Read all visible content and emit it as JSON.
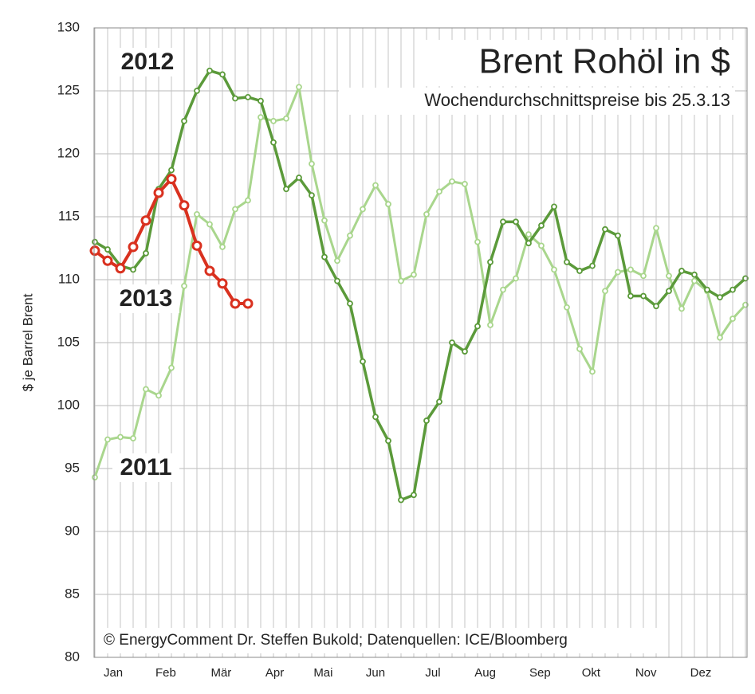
{
  "chart_data": {
    "type": "line",
    "title": "Brent Rohöl in $",
    "subtitle": "Wochendurchschnittspreise bis 25.3.13",
    "y_label": "$ je Barrel  Brent",
    "source": "© EnergyComment Dr. Steffen Bukold; Datenquellen: ICE/Bloomberg",
    "x": [
      1,
      2,
      3,
      4,
      5,
      6,
      7,
      8,
      9,
      10,
      11,
      12,
      13,
      14,
      15,
      16,
      17,
      18,
      19,
      20,
      21,
      22,
      23,
      24,
      25,
      26,
      27,
      28,
      29,
      30,
      31,
      32,
      33,
      34,
      35,
      36,
      37,
      38,
      39,
      40,
      41,
      42,
      43,
      44,
      45,
      46,
      47,
      48,
      49,
      50,
      51,
      52
    ],
    "xlim": [
      1,
      52
    ],
    "xticks": [
      {
        "value": 2.44,
        "label": "Jan"
      },
      {
        "value": 6.56,
        "label": "Feb"
      },
      {
        "value": 10.9,
        "label": "Mär"
      },
      {
        "value": 15.1,
        "label": "Apr"
      },
      {
        "value": 18.9,
        "label": "Mai"
      },
      {
        "value": 23,
        "label": "Jun"
      },
      {
        "value": 27.5,
        "label": "Jul"
      },
      {
        "value": 31.6,
        "label": "Aug"
      },
      {
        "value": 35.9,
        "label": "Sep"
      },
      {
        "value": 39.9,
        "label": "Okt"
      },
      {
        "value": 44.2,
        "label": "Nov"
      },
      {
        "value": 48.5,
        "label": "Dez"
      }
    ],
    "ylim": [
      80,
      130
    ],
    "yticks": [
      80,
      85,
      90,
      95,
      100,
      105,
      110,
      115,
      120,
      125,
      130
    ],
    "grid": true,
    "series": [
      {
        "name": "2011",
        "color": "#a9d68d",
        "values": [
          94.3,
          97.3,
          97.5,
          97.4,
          101.3,
          100.8,
          103.0,
          109.5,
          115.2,
          114.4,
          112.6,
          115.6,
          116.3,
          122.9,
          122.6,
          122.8,
          125.3,
          119.2,
          114.7,
          111.5,
          113.5,
          115.6,
          117.5,
          116.0,
          109.9,
          110.4,
          115.2,
          117.0,
          117.8,
          117.6,
          113.0,
          106.4,
          109.2,
          110.1,
          113.6,
          112.7,
          110.8,
          107.8,
          104.5,
          102.7,
          109.1,
          110.6,
          110.8,
          110.3,
          114.1,
          110.3,
          107.7,
          109.9,
          109.1,
          105.4,
          106.9,
          108.0
        ]
      },
      {
        "name": "2012",
        "color": "#5b9a3a",
        "values": [
          113.0,
          112.4,
          111.1,
          110.8,
          112.1,
          117.2,
          118.7,
          122.6,
          125.0,
          126.6,
          126.3,
          124.4,
          124.5,
          124.2,
          120.9,
          117.2,
          118.1,
          116.7,
          111.8,
          109.9,
          108.1,
          103.5,
          99.1,
          97.2,
          92.5,
          92.9,
          98.8,
          100.3,
          105.0,
          104.3,
          106.3,
          111.4,
          114.6,
          114.6,
          112.9,
          114.3,
          115.8,
          111.4,
          110.7,
          111.1,
          114.0,
          113.5,
          108.7,
          108.7,
          107.9,
          109.1,
          110.7,
          110.4,
          109.2,
          108.6,
          109.2,
          110.1
        ]
      },
      {
        "name": "2013",
        "color": "#d9311f",
        "values": [
          112.3,
          111.5,
          110.9,
          112.6,
          114.7,
          116.9,
          118.0,
          115.9,
          112.7,
          110.7,
          109.7,
          108.1,
          108.1,
          null,
          null,
          null,
          null,
          null,
          null,
          null,
          null,
          null,
          null,
          null,
          null,
          null,
          null,
          null,
          null,
          null,
          null,
          null,
          null,
          null,
          null,
          null,
          null,
          null,
          null,
          null,
          null,
          null,
          null,
          null,
          null,
          null,
          null,
          null,
          null,
          null,
          null,
          null
        ]
      }
    ]
  }
}
